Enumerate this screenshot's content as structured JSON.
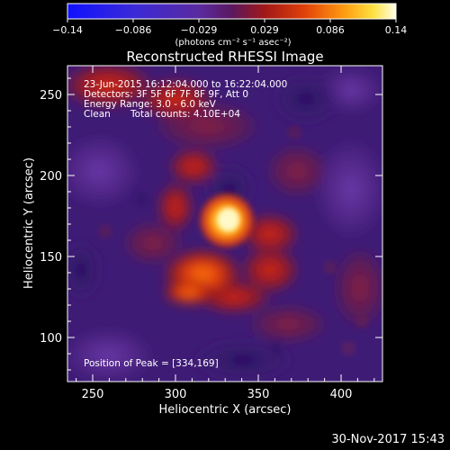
{
  "colorbar": {
    "ticks": [
      "−0.14",
      "−0.086",
      "−0.029",
      "0.029",
      "0.086",
      "0.14"
    ],
    "units": "(photons cm⁻² s⁻¹ asec⁻²)"
  },
  "title": "Reconstructed RHESSI Image",
  "info": {
    "time_range": "23-Jun-2015 16:12:04.000 to 16:22:04.000",
    "detectors": "Detectors: 3F 5F 6F 7F 8F 9F, Att 0",
    "energy": "Energy Range: 3.0 - 6.0 keV",
    "method": "Clean",
    "total_counts": "Total counts: 4.10E+04"
  },
  "peak_text": "Position of Peak = [334,169]",
  "axes": {
    "xlabel": "Heliocentric X (arcsec)",
    "ylabel": "Heliocentric Y (arcsec)",
    "xticks": [
      "250",
      "300",
      "350",
      "400"
    ],
    "yticks": [
      "100",
      "150",
      "200",
      "250"
    ]
  },
  "timestamp": "30-Nov-2017 15:43",
  "colors": {
    "background": "#000000",
    "negative_min": "#0000ff",
    "neutral": "#3a1a6e",
    "positive_max": "#ffffe0"
  }
}
